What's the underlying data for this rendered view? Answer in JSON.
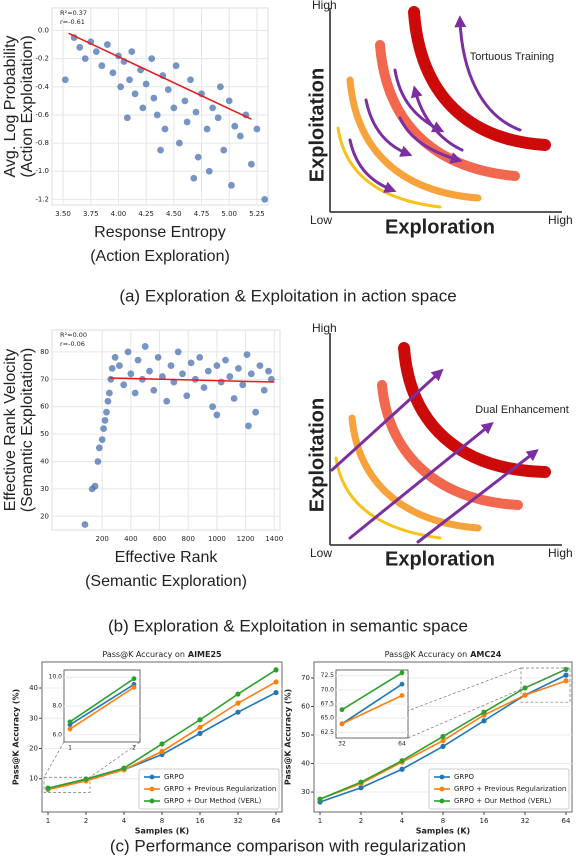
{
  "chart_data": [
    {
      "type": "scatter",
      "color": "#4a72b0",
      "x": [
        3.52,
        3.6,
        3.65,
        3.7,
        3.75,
        3.8,
        3.85,
        3.9,
        3.95,
        4.0,
        4.02,
        4.05,
        4.1,
        4.12,
        4.15,
        4.2,
        4.22,
        4.25,
        4.3,
        4.32,
        4.35,
        4.4,
        4.42,
        4.45,
        4.5,
        4.52,
        4.55,
        4.6,
        4.62,
        4.65,
        4.7,
        4.72,
        4.75,
        4.8,
        4.82,
        4.85,
        4.9,
        4.92,
        4.95,
        5.0,
        5.02,
        5.05,
        5.1,
        5.15,
        5.2,
        5.25,
        4.68,
        4.38,
        4.08,
        5.32
      ],
      "values": [
        -0.35,
        -0.05,
        -0.12,
        -0.2,
        -0.08,
        -0.15,
        -0.25,
        -0.1,
        -0.3,
        -0.18,
        -0.4,
        -0.22,
        -0.35,
        -0.15,
        -0.45,
        -0.28,
        -0.55,
        -0.38,
        -0.2,
        -0.48,
        -0.6,
        -0.32,
        -0.7,
        -0.42,
        -0.55,
        -0.25,
        -0.8,
        -0.5,
        -0.65,
        -0.35,
        -0.58,
        -0.9,
        -0.45,
        -0.7,
        -1.0,
        -0.55,
        -0.62,
        -0.4,
        -0.85,
        -0.5,
        -1.1,
        -0.68,
        -0.75,
        -0.6,
        -0.95,
        -0.7,
        -1.05,
        -0.85,
        -0.62,
        -1.2
      ],
      "fit": {
        "x": [
          3.55,
          5.2
        ],
        "values": [
          -0.02,
          -0.63
        ],
        "color": "#e41a1c"
      },
      "annotations": [
        "R²=0.37",
        "r=-0.61"
      ],
      "xlim": [
        3.4,
        5.35
      ],
      "xticks": [
        {
          "value": 3.5,
          "label": "3.50"
        },
        3.75,
        {
          "value": 4,
          "label": "4.00"
        },
        4.25,
        {
          "value": 4.5,
          "label": "4.50"
        },
        4.75,
        {
          "value": 5,
          "label": "5.00"
        },
        5.25
      ],
      "ylim": [
        -1.24,
        0.16
      ],
      "yticks": [
        {
          "value": 0,
          "label": "0.0"
        },
        -0.2,
        -0.4,
        -0.6,
        -0.8,
        {
          "value": -1,
          "label": "-1.0"
        },
        -1.2
      ],
      "grid": true,
      "xlabel": "Response Entropy",
      "xlabel_note": "(Action Exploration)",
      "ylabel": "Avg. Log Probability",
      "ylabel_note": "(Action Exploitation)",
      "note_color": "#e8242a"
    },
    {
      "type": "scatter",
      "color": "#4a72b0",
      "x": [
        80,
        130,
        150,
        170,
        180,
        200,
        210,
        220,
        230,
        240,
        250,
        260,
        270,
        290,
        320,
        350,
        380,
        400,
        430,
        450,
        480,
        500,
        530,
        560,
        590,
        620,
        650,
        680,
        700,
        730,
        760,
        790,
        820,
        850,
        880,
        910,
        940,
        970,
        1000,
        1030,
        1060,
        1090,
        1120,
        1150,
        1180,
        1210,
        1240,
        1270,
        1300,
        1330,
        1360,
        1380,
        1220,
        1000
      ],
      "values": [
        17,
        30,
        31,
        40,
        45,
        48,
        52,
        55,
        58,
        62,
        65,
        70,
        74,
        78,
        75,
        68,
        80,
        72,
        65,
        77,
        70,
        82,
        73,
        66,
        78,
        71,
        62,
        75,
        69,
        80,
        72,
        64,
        76,
        70,
        78,
        67,
        73,
        60,
        75,
        69,
        77,
        71,
        63,
        74,
        68,
        79,
        72,
        58,
        75,
        66,
        73,
        70,
        53,
        57
      ],
      "fit": {
        "x": [
          250,
          1400
        ],
        "values": [
          70.5,
          69
        ],
        "color": "#e41a1c"
      },
      "annotations": [
        "R²=0.00",
        "r=-0.06"
      ],
      "xlim": [
        -150,
        1440
      ],
      "xticks": [
        200,
        400,
        600,
        800,
        1000,
        1200,
        1400
      ],
      "ylim": [
        15,
        88
      ],
      "yticks": [
        20,
        30,
        40,
        50,
        60,
        70,
        80
      ],
      "grid": true,
      "xlabel": "Effective Rank",
      "xlabel_note": "(Semantic Exploration)",
      "ylabel": "Effective Rank Velocity",
      "ylabel_note": "(Semantic Exploitation)",
      "note_color": "#1fae5a"
    },
    {
      "type": "line",
      "title": "Pass@K Accuracy on",
      "title_emphasis": "AIME25",
      "categories": [
        "1",
        "2",
        "4",
        "8",
        "16",
        "32",
        "64"
      ],
      "series": [
        {
          "name": "GRPO",
          "color": "#1f77b4",
          "values": [
            6.7,
            9.5,
            13,
            18,
            25,
            32,
            38.5
          ]
        },
        {
          "name": "GRPO + Previous Regularization",
          "color": "#ff7f0e",
          "values": [
            6.4,
            9.3,
            13,
            19,
            27,
            35,
            42
          ]
        },
        {
          "name": "GRPO + Our Method (VERL)",
          "color": "#2ca02c",
          "values": [
            6.9,
            9.9,
            13.5,
            21.5,
            29.5,
            38,
            46
          ]
        }
      ],
      "ylim": [
        -1,
        48.6
      ],
      "yticks": [
        10,
        20,
        30,
        40
      ],
      "grid": true,
      "legend": "lower right",
      "xlabel": "Samples (K)",
      "ylabel": "Pass@K Accuracy (%)",
      "inset": {
        "xticks": [
          "1",
          "2"
        ],
        "ylim": [
          5.5,
          10.5
        ],
        "yticks": [
          {
            "value": 6,
            "label": "6.0"
          },
          {
            "value": 8,
            "label": "8.0"
          },
          {
            "value": 10,
            "label": "10.0"
          }
        ]
      }
    },
    {
      "type": "line",
      "title": "Pass@K Accuracy on",
      "title_emphasis": "AMC24",
      "categories": [
        "1",
        "2",
        "4",
        "8",
        "16",
        "32",
        "64"
      ],
      "series": [
        {
          "name": "GRPO",
          "color": "#1f77b4",
          "values": [
            26.5,
            31.5,
            38,
            46,
            55,
            64,
            71
          ]
        },
        {
          "name": "GRPO + Previous Regularization",
          "color": "#ff7f0e",
          "values": [
            27.5,
            33,
            40.5,
            48,
            57,
            64,
            69
          ]
        },
        {
          "name": "GRPO + Our Method (VERL)",
          "color": "#2ca02c",
          "values": [
            27.5,
            33.5,
            41,
            49.5,
            58,
            66.5,
            73
          ]
        }
      ],
      "ylim": [
        23,
        75.6
      ],
      "yticks": [
        30,
        40,
        50,
        60,
        70
      ],
      "grid": true,
      "legend": "lower right",
      "xlabel": "Samples (K)",
      "ylabel": "Pass@K Accuracy (%)",
      "inset": {
        "xticks": [
          "32",
          "64"
        ],
        "ylim": [
          61.5,
          73.5
        ],
        "yticks": [
          62.5,
          {
            "value": 65,
            "label": "65.0"
          },
          67.5,
          {
            "value": 70,
            "label": "70.0"
          },
          72.5
        ]
      }
    }
  ],
  "diagrams": [
    {
      "y_high": "High",
      "x_low": "Low",
      "x_high": "High",
      "ylabel": "Exploitation",
      "xlabel": "Exploration",
      "note": "Tortuous Training",
      "color": "#e8242a"
    },
    {
      "y_high": "High",
      "x_low": "Low",
      "x_high": "High",
      "ylabel": "Exploitation",
      "xlabel": "Exploration",
      "note": "Dual Enhancement",
      "color": "#1fae5a"
    }
  ],
  "captions": [
    "(a) Exploration & Exploitation in action space",
    "(b) Exploration & Exploitation in semantic space",
    "(c) Performance comparison with regularization"
  ]
}
